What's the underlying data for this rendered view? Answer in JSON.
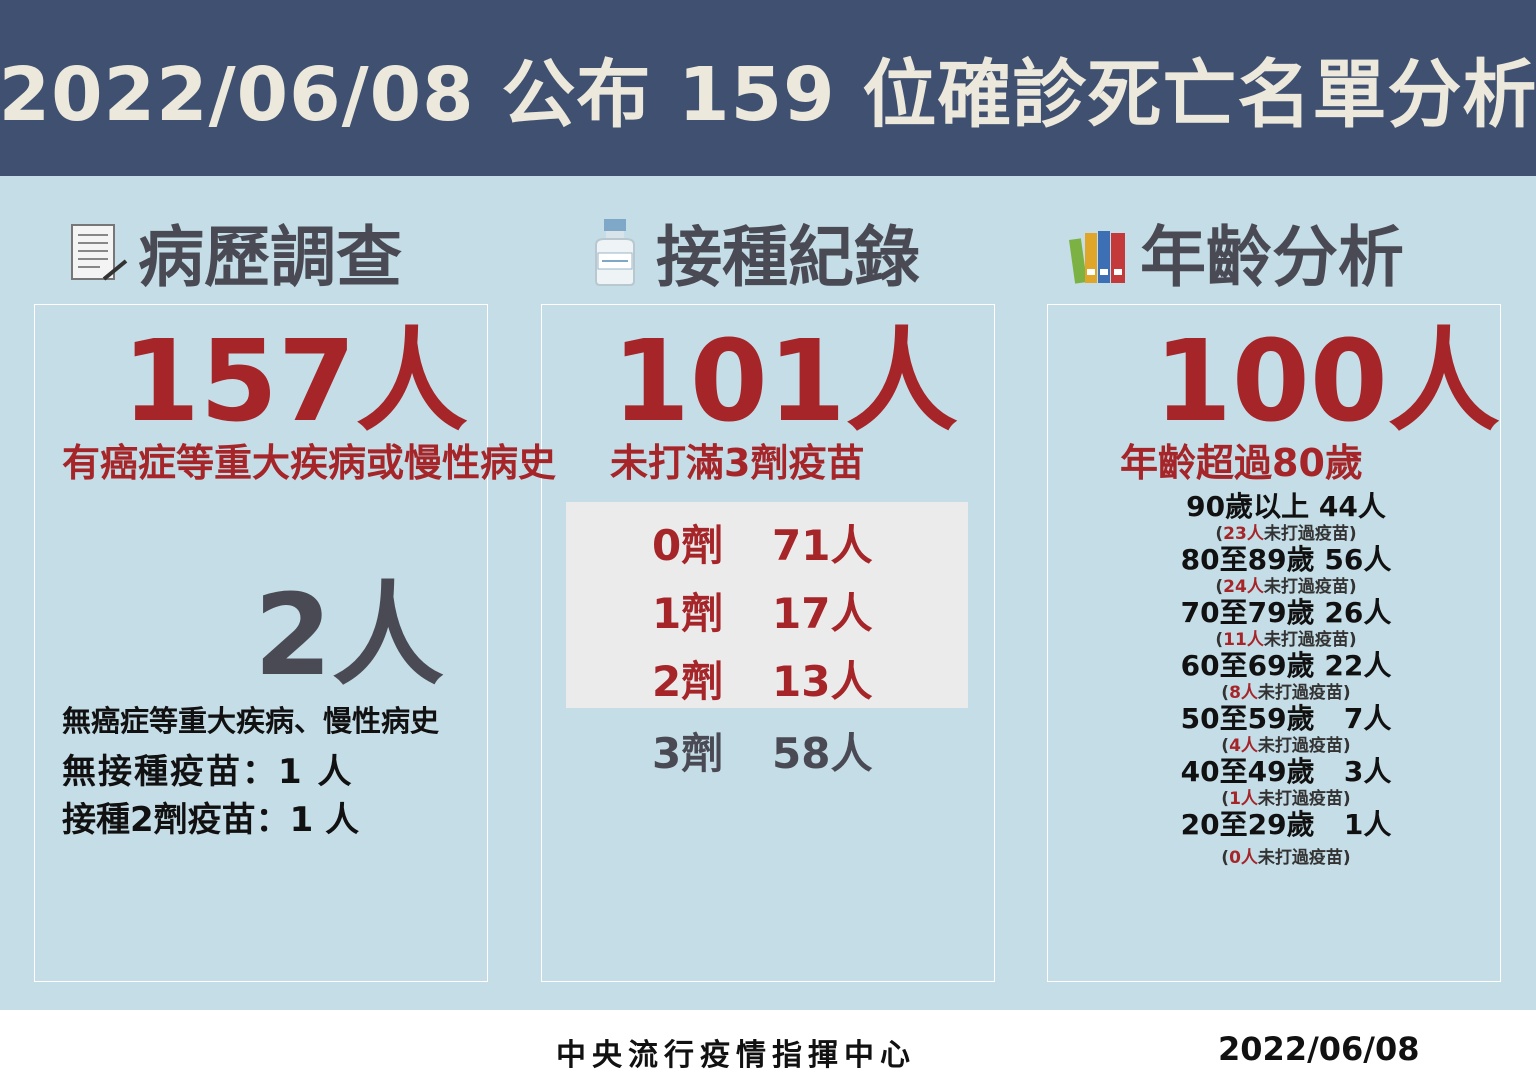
{
  "header": {
    "title": "2022/06/08 公布 159 位確診死亡名單分析"
  },
  "sections": {
    "history": {
      "title": "病歷調查",
      "icon": "document-pen-icon",
      "main_count": "157人",
      "main_desc": "有癌症等重大疾病或慢性病史",
      "sub_count": "2人",
      "sub_desc": "無癌症等重大疾病、慢性病史",
      "line1": "無接種疫苗：1 人",
      "line2": "接種2劑疫苗：1 人"
    },
    "vaccination": {
      "title": "接種紀錄",
      "icon": "vaccine-bottle-icon",
      "main_count": "101人",
      "main_desc": "未打滿3劑疫苗",
      "doses": [
        {
          "dose": "0劑",
          "count": "71人"
        },
        {
          "dose": "1劑",
          "count": "17人"
        },
        {
          "dose": "2劑",
          "count": "13人"
        },
        {
          "dose": "3劑",
          "count": "58人"
        }
      ]
    },
    "age": {
      "title": "年齡分析",
      "icon": "books-icon",
      "main_count": "100人",
      "main_desc": "年齡超過80歲",
      "note_suffix": "未打過疫苗",
      "groups": [
        {
          "label": "90歲以上 44人",
          "unvax": "23人"
        },
        {
          "label": "80至89歲 56人",
          "unvax": "24人"
        },
        {
          "label": "70至79歲 26人",
          "unvax": "11人"
        },
        {
          "label": "60至69歲 22人",
          "unvax": "8人"
        },
        {
          "label": "50至59歲   7人",
          "unvax": "4人"
        },
        {
          "label": "40至49歲   3人",
          "unvax": "1人"
        },
        {
          "label": "20至29歲   1人",
          "unvax": "0人"
        }
      ]
    }
  },
  "footer": {
    "org": "中央流行疫情指揮中心",
    "date": "2022/06/08"
  },
  "colors": {
    "header_bg": "#3f5070",
    "body_bg": "#c5dde6",
    "accent_red": "#a52529",
    "grey_text": "#4a4a55"
  }
}
